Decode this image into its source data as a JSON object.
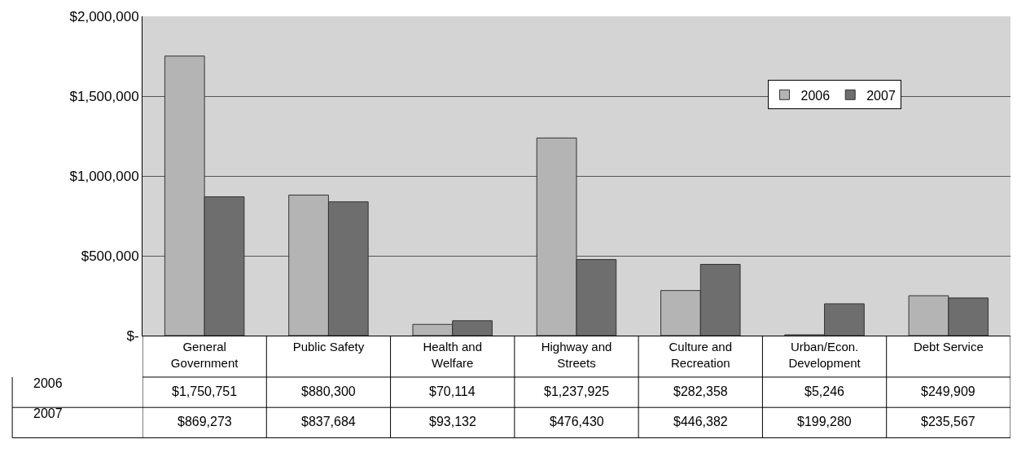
{
  "chart_data": {
    "type": "bar",
    "categories": [
      "General Government",
      "Public Safety",
      "Health and Welfare",
      "Highway and Streets",
      "Culture and Recreation",
      "Urban/Econ. Development",
      "Debt Service"
    ],
    "series": [
      {
        "name": "2006",
        "color": "#b4b4b4",
        "values": [
          1750751,
          880300,
          70114,
          1237925,
          282358,
          5246,
          249909
        ],
        "value_labels": [
          "$1,750,751",
          "$880,300",
          "$70,114",
          "$1,237,925",
          "$282,358",
          "$5,246",
          "$249,909"
        ]
      },
      {
        "name": "2007",
        "color": "#6e6e6e",
        "values": [
          869273,
          837684,
          93132,
          476430,
          446382,
          199280,
          235567
        ],
        "value_labels": [
          "$869,273",
          "$837,684",
          "$93,132",
          "$476,430",
          "$446,382",
          "$199,280",
          "$235,567"
        ]
      }
    ],
    "ylim": [
      0,
      2000000
    ],
    "yticks": [
      {
        "value": 0,
        "label": "$-"
      },
      {
        "value": 500000,
        "label": "$500,000"
      },
      {
        "value": 1000000,
        "label": "$1,000,000"
      },
      {
        "value": 1500000,
        "label": "$1,500,000"
      },
      {
        "value": 2000000,
        "label": "$2,000,000"
      }
    ],
    "grid": "y",
    "legend": "top right"
  }
}
